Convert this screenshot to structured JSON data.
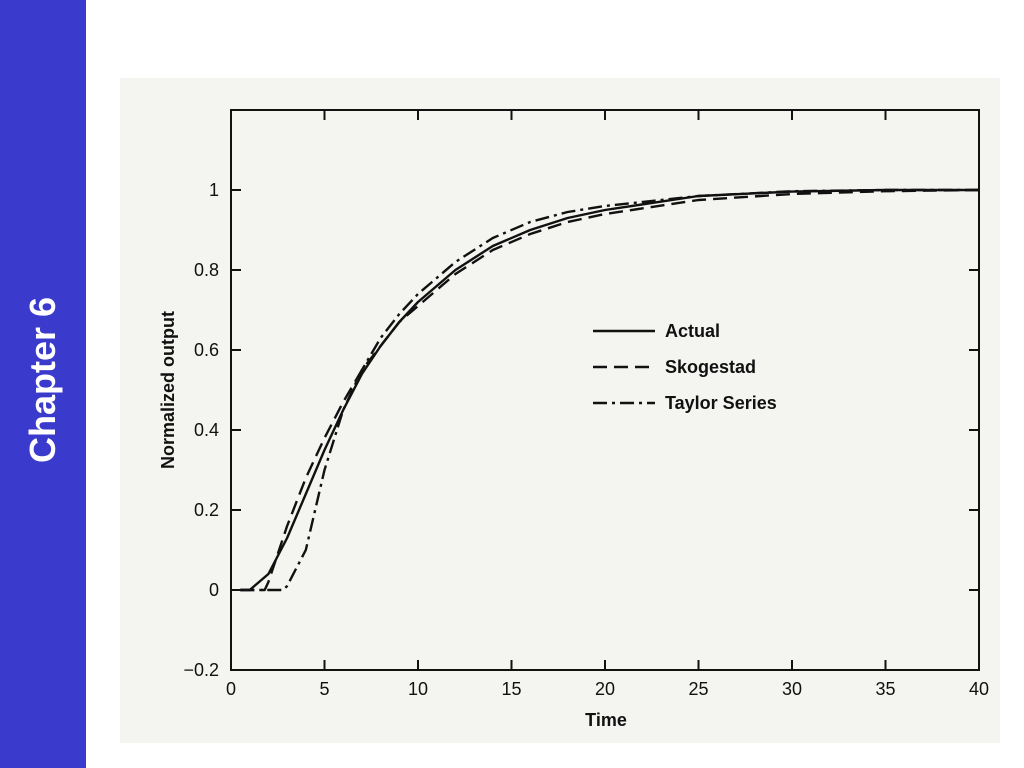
{
  "slide": {
    "sidebar_label": "Chapter 6",
    "sidebar_color": "#3a3acc"
  },
  "chart_data": {
    "type": "line",
    "title": "",
    "xlabel": "Time",
    "ylabel": "Normalized output",
    "xlim": [
      0,
      40
    ],
    "ylim": [
      -0.2,
      1.2
    ],
    "xticks": [
      0,
      5,
      10,
      15,
      20,
      25,
      30,
      35,
      40
    ],
    "yticks": [
      -0.2,
      0,
      0.2,
      0.4,
      0.6,
      0.8,
      1
    ],
    "ytick_labels": [
      "−0.2",
      "0",
      "0.2",
      "0.4",
      "0.6",
      "0.8",
      "1"
    ],
    "grid": false,
    "legend_position": "center-right",
    "series": [
      {
        "name": "Actual",
        "style": "solid",
        "x": [
          0.5,
          1,
          2,
          3,
          4,
          5,
          6,
          7,
          8,
          9,
          10,
          12,
          14,
          16,
          18,
          20,
          25,
          30,
          35,
          40
        ],
        "y": [
          0,
          0,
          0.04,
          0.13,
          0.24,
          0.35,
          0.45,
          0.54,
          0.61,
          0.67,
          0.72,
          0.8,
          0.86,
          0.9,
          0.93,
          0.95,
          0.985,
          0.996,
          1,
          1
        ]
      },
      {
        "name": "Skogestad",
        "style": "dashed",
        "x": [
          0.5,
          1,
          1.8,
          2,
          3,
          4,
          5,
          6,
          7,
          8,
          9,
          10,
          12,
          14,
          16,
          18,
          20,
          25,
          30,
          35,
          40
        ],
        "y": [
          0,
          0,
          0,
          0.02,
          0.16,
          0.28,
          0.38,
          0.47,
          0.55,
          0.61,
          0.67,
          0.71,
          0.79,
          0.85,
          0.89,
          0.92,
          0.94,
          0.975,
          0.99,
          0.997,
          1
        ]
      },
      {
        "name": "Taylor Series",
        "style": "dash-dot",
        "x": [
          0.5,
          1,
          2,
          2.8,
          3,
          4,
          5,
          6,
          7,
          8,
          9,
          10,
          12,
          14,
          16,
          18,
          20,
          25,
          30,
          35,
          40
        ],
        "y": [
          0,
          0,
          0,
          0,
          0.01,
          0.1,
          0.3,
          0.45,
          0.55,
          0.63,
          0.69,
          0.74,
          0.82,
          0.88,
          0.92,
          0.945,
          0.96,
          0.985,
          0.997,
          1,
          1
        ]
      }
    ]
  }
}
